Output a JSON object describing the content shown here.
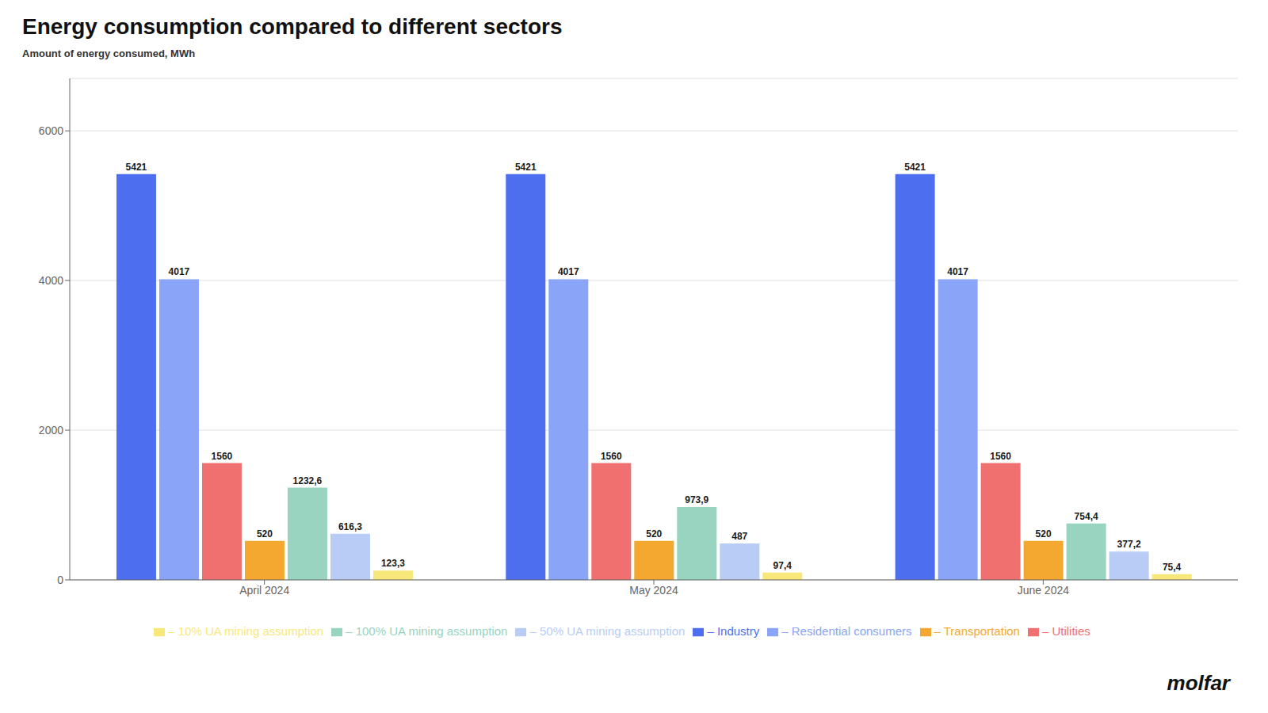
{
  "chart_data": {
    "type": "bar",
    "title": "Energy consumption compared to different sectors",
    "ylabel": "Amount of energy consumed, MWh",
    "categories": [
      "April 2024",
      "May 2024",
      "June 2024"
    ],
    "series": [
      {
        "name": "– Industry",
        "color": "#4E6EF0",
        "values": [
          5421,
          5421,
          5421
        ],
        "value_labels": [
          "5421",
          "5421",
          "5421"
        ]
      },
      {
        "name": "– Residential consumers",
        "color": "#8AA4F8",
        "values": [
          4017,
          4017,
          4017
        ],
        "value_labels": [
          "4017",
          "4017",
          "4017"
        ]
      },
      {
        "name": "– Utilities",
        "color": "#F07070",
        "values": [
          1560,
          1560,
          1560
        ],
        "value_labels": [
          "1560",
          "1560",
          "1560"
        ]
      },
      {
        "name": "– Transportation",
        "color": "#F5A830",
        "values": [
          520,
          520,
          520
        ],
        "value_labels": [
          "520",
          "520",
          "520"
        ]
      },
      {
        "name": "– 100% UA mining assumption",
        "color": "#98D4C0",
        "values": [
          1232.6,
          973.9,
          754.4
        ],
        "value_labels": [
          "1232,6",
          "973,9",
          "754,4"
        ]
      },
      {
        "name": "– 50% UA mining assumption",
        "color": "#B8CCF5",
        "values": [
          616.3,
          487.0,
          377.2
        ],
        "value_labels": [
          "616,3",
          "487",
          "377,2"
        ]
      },
      {
        "name": "– 10% UA mining assumption",
        "color": "#F8E87A",
        "values": [
          123.3,
          97.4,
          75.4
        ],
        "value_labels": [
          "123,3",
          "97,4",
          "75,4"
        ]
      }
    ],
    "ylim": [
      0,
      6700
    ],
    "yticks": [
      0,
      2000,
      4000,
      6000
    ],
    "grid": true,
    "legend": "bottom",
    "data_labels": true,
    "annotations": [
      "molfar"
    ]
  }
}
